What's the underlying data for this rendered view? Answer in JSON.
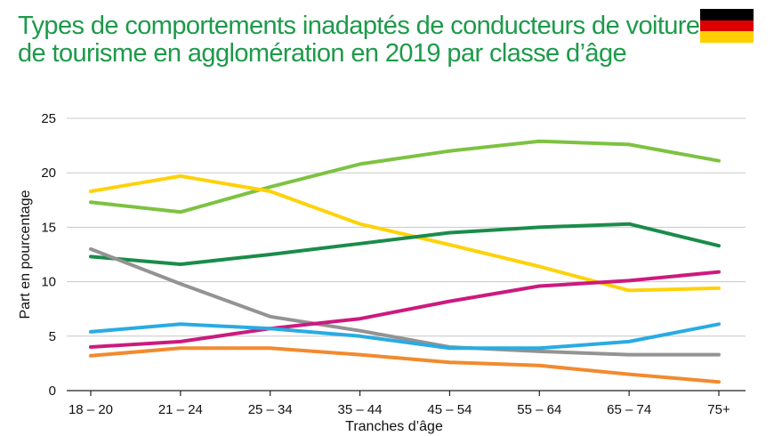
{
  "chart_data": {
    "type": "line",
    "title_lines": [
      "Types de comportements inadaptés de conducteurs de voitures",
      "de tourisme en agglomération en 2019 par classe d’âge"
    ],
    "xlabel": "Tranches d’âge",
    "ylabel": "Part en pourcentage",
    "categories": [
      "18 – 20",
      "21 – 24",
      "25 – 34",
      "35 – 44",
      "45 – 54",
      "55 – 64",
      "65 – 74",
      "75+"
    ],
    "ylim": [
      0,
      25
    ],
    "yticks": [
      0,
      5,
      10,
      15,
      20,
      25
    ],
    "grid": true,
    "legend": "none",
    "flag_colors": [
      "#000000",
      "#dd0000",
      "#ffce00"
    ],
    "title_color": "#1d9a4a",
    "series": [
      {
        "color": "#7dc242",
        "values": [
          17.3,
          16.4,
          18.7,
          20.8,
          22.0,
          22.9,
          22.6,
          21.1
        ]
      },
      {
        "color": "#fdd20a",
        "values": [
          18.3,
          19.7,
          18.3,
          15.3,
          13.4,
          11.4,
          9.2,
          9.4
        ]
      },
      {
        "color": "#1a8c4a",
        "values": [
          12.3,
          11.6,
          12.5,
          13.5,
          14.5,
          15.0,
          15.3,
          13.3
        ]
      },
      {
        "color": "#939393",
        "values": [
          13.0,
          9.8,
          6.8,
          5.5,
          4.0,
          3.6,
          3.3,
          3.3
        ]
      },
      {
        "color": "#cc1a7e",
        "values": [
          4.0,
          4.5,
          5.7,
          6.6,
          8.2,
          9.6,
          10.1,
          10.9
        ]
      },
      {
        "color": "#29abe2",
        "values": [
          5.4,
          6.1,
          5.7,
          5.0,
          3.9,
          3.9,
          4.5,
          6.1
        ]
      },
      {
        "color": "#f28a2e",
        "values": [
          3.2,
          3.9,
          3.9,
          3.3,
          2.6,
          2.3,
          1.5,
          0.8
        ]
      }
    ]
  }
}
